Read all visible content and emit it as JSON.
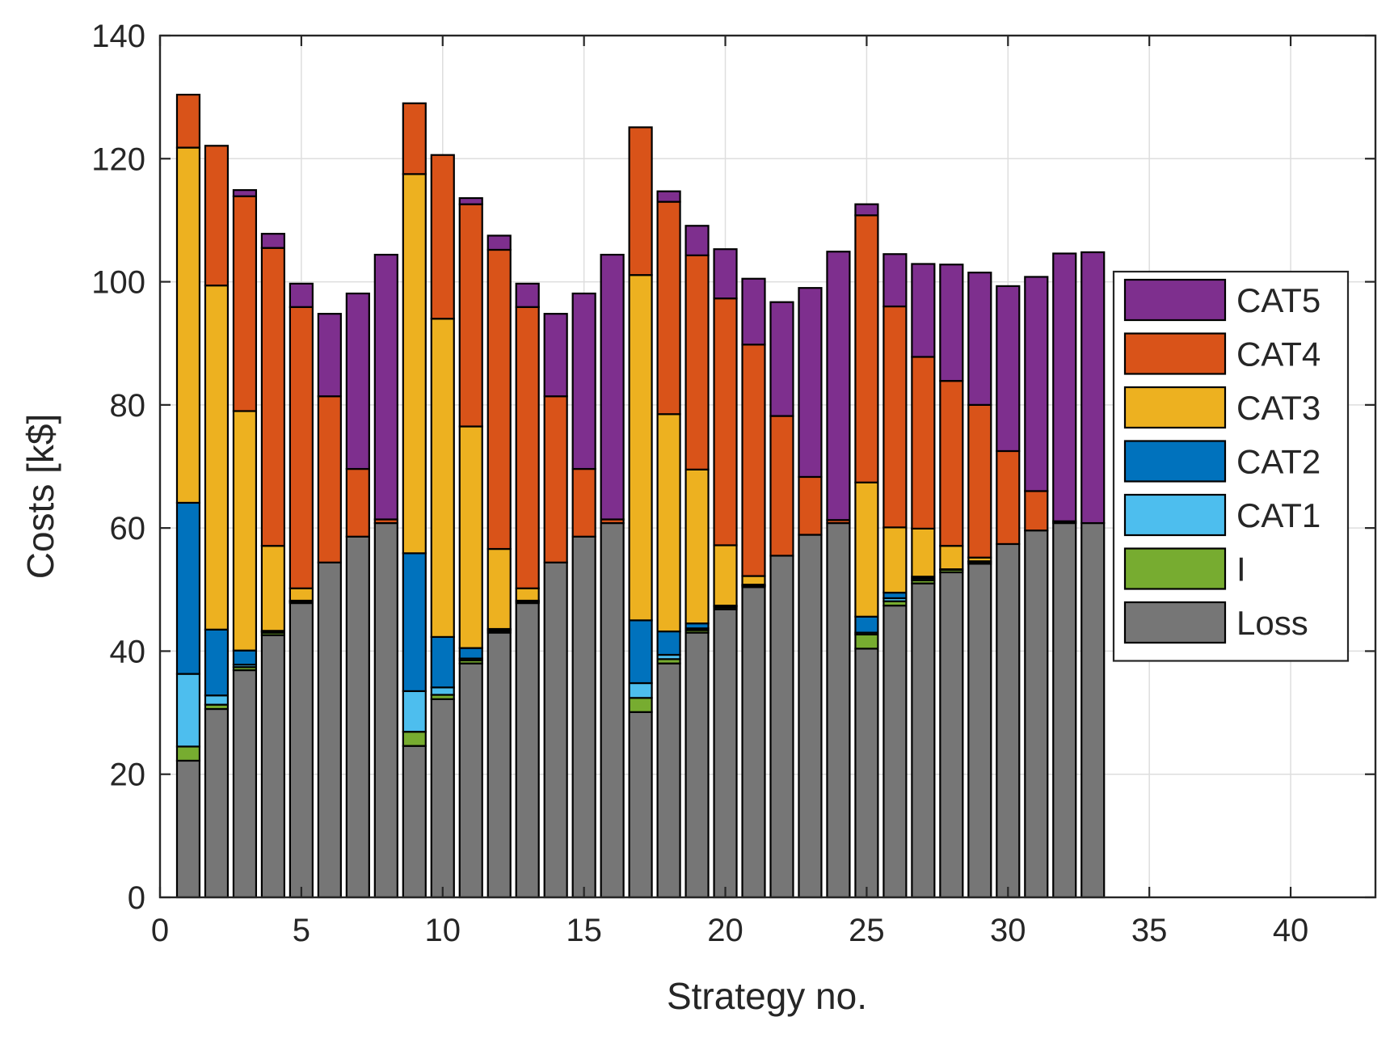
{
  "chart_data": {
    "type": "bar",
    "stacked": true,
    "title": "",
    "xlabel": "Strategy no.",
    "ylabel": "Costs [k$]",
    "xlim": [
      0,
      43
    ],
    "ylim": [
      0,
      140
    ],
    "xticks": [
      0,
      5,
      10,
      15,
      20,
      25,
      30,
      35,
      40
    ],
    "yticks": [
      0,
      20,
      40,
      60,
      80,
      100,
      120,
      140
    ],
    "grid": true,
    "legend_position": "right",
    "x": [
      1,
      2,
      3,
      4,
      5,
      6,
      7,
      8,
      9,
      10,
      11,
      12,
      13,
      14,
      15,
      16,
      17,
      18,
      19,
      20,
      21,
      22,
      23,
      24,
      25,
      26,
      27,
      28,
      29,
      30,
      31,
      32,
      33
    ],
    "series": [
      {
        "name": "Loss",
        "color": "#767676",
        "values": [
          22.2,
          30.6,
          36.9,
          42.6,
          47.8,
          54.4,
          58.6,
          60.8,
          24.6,
          32.2,
          38,
          43,
          47.8,
          54.4,
          58.6,
          60.8,
          30.1,
          38,
          43,
          46.8,
          50.4,
          55.5,
          58.9,
          60.8,
          40.4,
          47.4,
          51,
          52.8,
          54.2,
          57.4,
          59.6,
          60.8,
          60.8
        ]
      },
      {
        "name": "I",
        "color": "#77AC30",
        "values": [
          2.3,
          0.7,
          0.5,
          0.4,
          0.2,
          0,
          0,
          0,
          2.3,
          0.7,
          0.5,
          0.3,
          0.2,
          0,
          0,
          0,
          2.3,
          0.7,
          0.4,
          0.3,
          0.2,
          0,
          0,
          0,
          2.3,
          0.7,
          0.5,
          0.4,
          0.3,
          0,
          0,
          0,
          0
        ]
      },
      {
        "name": "CAT1",
        "color": "#4DBEEE",
        "values": [
          11.8,
          1.5,
          0.4,
          0.2,
          0.1,
          0,
          0,
          0,
          6.6,
          1.2,
          0.3,
          0.2,
          0.1,
          0,
          0,
          0,
          2.4,
          0.7,
          0.3,
          0.2,
          0.1,
          0,
          0,
          0,
          0.3,
          0.5,
          0.3,
          0.1,
          0.1,
          0,
          0,
          0,
          0
        ]
      },
      {
        "name": "CAT2",
        "color": "#0072BD",
        "values": [
          27.8,
          10.7,
          2.3,
          0.1,
          0.1,
          0,
          0,
          0,
          22.4,
          8.2,
          1.7,
          0.1,
          0.1,
          0,
          0,
          0,
          10.2,
          3.8,
          0.8,
          0.1,
          0.1,
          0,
          0,
          0,
          2.6,
          0.9,
          0.3,
          0,
          0,
          0,
          0,
          0,
          0
        ]
      },
      {
        "name": "CAT3",
        "color": "#EDB120",
        "values": [
          57.7,
          55.9,
          38.9,
          13.8,
          2,
          0,
          0,
          0,
          61.6,
          51.7,
          36,
          13,
          2,
          0,
          0,
          0,
          56.1,
          35.3,
          25,
          9.8,
          1.4,
          0,
          0,
          0,
          21.8,
          10.6,
          7.8,
          3.8,
          0.6,
          0,
          0,
          0,
          0
        ]
      },
      {
        "name": "CAT4",
        "color": "#D95319",
        "values": [
          8.6,
          22.7,
          34.9,
          48.4,
          45.7,
          27,
          11,
          0.6,
          11.5,
          26.6,
          36.1,
          48.6,
          45.7,
          27,
          11,
          0.6,
          24,
          34.5,
          34.8,
          40.1,
          37.6,
          22.7,
          9.4,
          0.5,
          43.4,
          35.9,
          27.9,
          26.8,
          24.8,
          15.1,
          6.4,
          0.3,
          0
        ]
      },
      {
        "name": "CAT5",
        "color": "#7E2F8E",
        "values": [
          0,
          0,
          1,
          2.3,
          3.8,
          13.4,
          28.5,
          43,
          0,
          0,
          1,
          2.3,
          3.8,
          13.4,
          28.5,
          43,
          0,
          1.7,
          4.8,
          8,
          10.7,
          18.5,
          30.7,
          43.6,
          1.8,
          8.5,
          15.1,
          18.9,
          21.5,
          26.8,
          34.8,
          43.5,
          44
        ]
      }
    ],
    "legend_order": [
      "CAT5",
      "CAT4",
      "CAT3",
      "CAT2",
      "CAT1",
      "I",
      "Loss"
    ]
  }
}
